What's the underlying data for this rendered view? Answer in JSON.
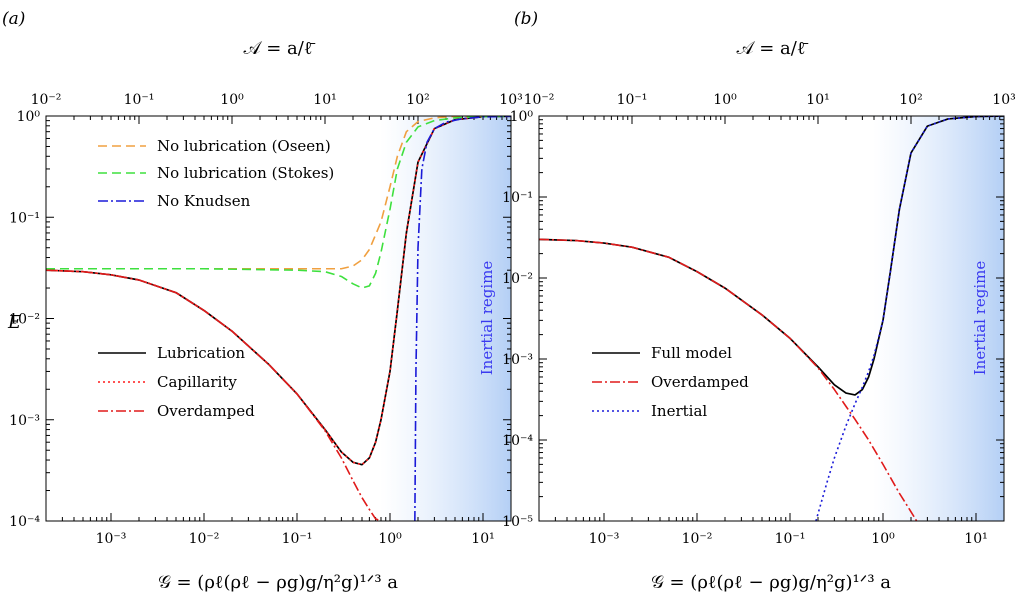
{
  "panels": [
    {
      "label": "(a)",
      "top_axis_label": "𝒜 = a/ℓ̄",
      "bottom_axis_label": "𝒢 = (ρℓ(ρℓ − ρg)g/η²g)¹ᐟ³ a",
      "ylabel": "E",
      "regime_label": "Inertial regime",
      "legend_upper": [
        {
          "label": "No lubrication (Oseen)",
          "color": "#f0a040",
          "dash": "long-dash"
        },
        {
          "label": "No lubrication (Stokes)",
          "color": "#3ee03e",
          "dash": "long-dash"
        },
        {
          "label": "No Knudsen",
          "color": "#1a1ad8",
          "dash": "dash-dot"
        }
      ],
      "legend_lower": [
        {
          "label": "Lubrication",
          "color": "#000000",
          "dash": "solid"
        },
        {
          "label": "Capillarity",
          "color": "#ff1a1a",
          "dash": "dotted"
        },
        {
          "label": "Overdamped",
          "color": "#e01a1a",
          "dash": "dash-dot"
        }
      ]
    },
    {
      "label": "(b)",
      "top_axis_label": "𝒜 = a/ℓ̄",
      "bottom_axis_label": "𝒢 = (ρℓ(ρℓ − ρg)g/η²g)¹ᐟ³ a",
      "regime_label": "Inertial regime",
      "legend": [
        {
          "label": "Full model",
          "color": "#000000",
          "dash": "solid"
        },
        {
          "label": "Overdamped",
          "color": "#e01a1a",
          "dash": "dash-dot"
        },
        {
          "label": "Inertial",
          "color": "#1a1ad8",
          "dash": "dotted"
        }
      ]
    }
  ],
  "chart_data": [
    {
      "type": "line",
      "panel": "(a)",
      "x_scale": "log",
      "y_scale": "log",
      "xlim": [
        0.0002,
        20
      ],
      "ylim": [
        0.0001,
        1
      ],
      "top_xlim": [
        0.01,
        1000
      ],
      "x_ticks": [
        "10⁻³",
        "10⁻²",
        "10⁻¹",
        "10⁰",
        "10¹"
      ],
      "top_x_ticks": [
        "10⁻²",
        "10⁻¹",
        "10⁰",
        "10¹",
        "10²",
        "10³"
      ],
      "y_ticks": [
        "10⁻⁴",
        "10⁻³",
        "10⁻²",
        "10⁻¹",
        "10⁰"
      ],
      "xlabel": "𝒢 = (ρℓ(ρℓ − ρg)g/η²g)¹ᐟ³ a",
      "top_xlabel": "𝒜 = a/ℓ̄",
      "ylabel": "E",
      "annotation": "Inertial regime",
      "series": [
        {
          "name": "Lubrication",
          "x": [
            0.0002,
            0.0005,
            0.001,
            0.002,
            0.005,
            0.01,
            0.02,
            0.05,
            0.1,
            0.2,
            0.3,
            0.4,
            0.5,
            0.6,
            0.7,
            0.8,
            1.0,
            1.2,
            1.5,
            2,
            3,
            5,
            10,
            20
          ],
          "y": [
            0.03,
            0.029,
            0.027,
            0.024,
            0.018,
            0.012,
            0.0075,
            0.0035,
            0.0018,
            0.0008,
            0.00048,
            0.00038,
            0.00036,
            0.00042,
            0.0006,
            0.001,
            0.003,
            0.012,
            0.07,
            0.35,
            0.75,
            0.92,
            0.985,
            0.995
          ]
        },
        {
          "name": "Capillarity",
          "x": [
            0.0002,
            0.0005,
            0.001,
            0.002,
            0.005,
            0.01,
            0.02,
            0.05,
            0.1,
            0.2,
            0.3,
            0.4,
            0.5,
            0.6,
            0.7,
            0.8,
            1.0,
            1.2,
            1.5,
            2,
            3,
            5,
            10,
            20
          ],
          "y": [
            0.03,
            0.029,
            0.027,
            0.024,
            0.018,
            0.012,
            0.0075,
            0.0035,
            0.0018,
            0.0008,
            0.00048,
            0.00038,
            0.00036,
            0.00042,
            0.0006,
            0.001,
            0.003,
            0.012,
            0.07,
            0.35,
            0.75,
            0.92,
            0.985,
            0.995
          ]
        },
        {
          "name": "Overdamped",
          "x": [
            0.0002,
            0.0005,
            0.001,
            0.002,
            0.005,
            0.01,
            0.02,
            0.05,
            0.1,
            0.2,
            0.3,
            0.4,
            0.5,
            0.6,
            0.7,
            0.8
          ],
          "y": [
            0.03,
            0.029,
            0.027,
            0.024,
            0.018,
            0.012,
            0.0075,
            0.0035,
            0.0018,
            0.00078,
            0.00042,
            0.00025,
            0.00017,
            0.00013,
            0.000105,
            0.0001
          ]
        },
        {
          "name": "No lubrication (Oseen)",
          "x": [
            0.0002,
            0.001,
            0.01,
            0.1,
            0.2,
            0.3,
            0.4,
            0.5,
            0.6,
            0.8,
            1.0,
            1.2,
            1.5,
            2,
            3,
            5,
            10,
            20
          ],
          "y": [
            0.031,
            0.031,
            0.031,
            0.031,
            0.031,
            0.031,
            0.033,
            0.038,
            0.048,
            0.09,
            0.2,
            0.4,
            0.7,
            0.88,
            0.96,
            0.99,
            0.999,
            1.0
          ]
        },
        {
          "name": "No lubrication (Stokes)",
          "x": [
            0.0002,
            0.001,
            0.01,
            0.1,
            0.2,
            0.3,
            0.4,
            0.5,
            0.6,
            0.7,
            0.8,
            1.0,
            1.2,
            1.5,
            2,
            3,
            5,
            10,
            20
          ],
          "y": [
            0.031,
            0.031,
            0.031,
            0.03,
            0.029,
            0.026,
            0.022,
            0.02,
            0.021,
            0.028,
            0.045,
            0.12,
            0.3,
            0.55,
            0.78,
            0.9,
            0.96,
            0.985,
            0.995
          ]
        },
        {
          "name": "No Knudsen",
          "x": [
            1.85,
            1.9,
            2.0,
            2.2,
            2.5,
            3,
            4,
            6,
            10,
            20
          ],
          "y": [
            0.0001,
            0.003,
            0.05,
            0.3,
            0.55,
            0.75,
            0.87,
            0.94,
            0.98,
            0.995
          ]
        }
      ]
    },
    {
      "type": "line",
      "panel": "(b)",
      "x_scale": "log",
      "y_scale": "log",
      "xlim": [
        0.0002,
        20
      ],
      "ylim": [
        1e-05,
        1
      ],
      "top_xlim": [
        0.01,
        1000
      ],
      "x_ticks": [
        "10⁻³",
        "10⁻²",
        "10⁻¹",
        "10⁰",
        "10¹"
      ],
      "top_x_ticks": [
        "10⁻²",
        "10⁻¹",
        "10⁰",
        "10¹",
        "10²",
        "10³"
      ],
      "y_ticks": [
        "10⁻⁵",
        "10⁻⁴",
        "10⁻³",
        "10⁻²",
        "10⁻¹",
        "10⁰"
      ],
      "xlabel": "𝒢 = (ρℓ(ρℓ − ρg)g/η²g)¹ᐟ³ a",
      "top_xlabel": "𝒜 = a/ℓ̄",
      "annotation": "Inertial regime",
      "series": [
        {
          "name": "Full model",
          "x": [
            0.0002,
            0.0005,
            0.001,
            0.002,
            0.005,
            0.01,
            0.02,
            0.05,
            0.1,
            0.2,
            0.3,
            0.4,
            0.5,
            0.6,
            0.7,
            0.8,
            1.0,
            1.2,
            1.5,
            2,
            3,
            5,
            10,
            20
          ],
          "y": [
            0.03,
            0.029,
            0.027,
            0.024,
            0.018,
            0.012,
            0.0075,
            0.0035,
            0.0018,
            0.0008,
            0.00048,
            0.00038,
            0.00036,
            0.00042,
            0.0006,
            0.001,
            0.003,
            0.012,
            0.07,
            0.35,
            0.75,
            0.92,
            0.985,
            0.998
          ]
        },
        {
          "name": "Overdamped",
          "x": [
            0.0002,
            0.0005,
            0.001,
            0.002,
            0.005,
            0.01,
            0.02,
            0.05,
            0.1,
            0.2,
            0.3,
            0.4,
            0.5,
            0.7,
            1.0,
            1.5,
            2.0,
            2.3
          ],
          "y": [
            0.03,
            0.029,
            0.027,
            0.024,
            0.018,
            0.012,
            0.0075,
            0.0035,
            0.0018,
            0.00078,
            0.00042,
            0.00026,
            0.00018,
            0.0001,
            5e-05,
            2.2e-05,
            1.3e-05,
            1e-05
          ]
        },
        {
          "name": "Inertial",
          "x": [
            0.19,
            0.25,
            0.3,
            0.4,
            0.5,
            0.6,
            0.7,
            0.8,
            1.0,
            1.2,
            1.5,
            2,
            3,
            5,
            10,
            20
          ],
          "y": [
            1e-05,
            3e-05,
            6e-05,
            0.00015,
            0.00028,
            0.00045,
            0.0007,
            0.0011,
            0.003,
            0.012,
            0.07,
            0.35,
            0.75,
            0.92,
            0.985,
            0.998
          ]
        }
      ]
    }
  ]
}
